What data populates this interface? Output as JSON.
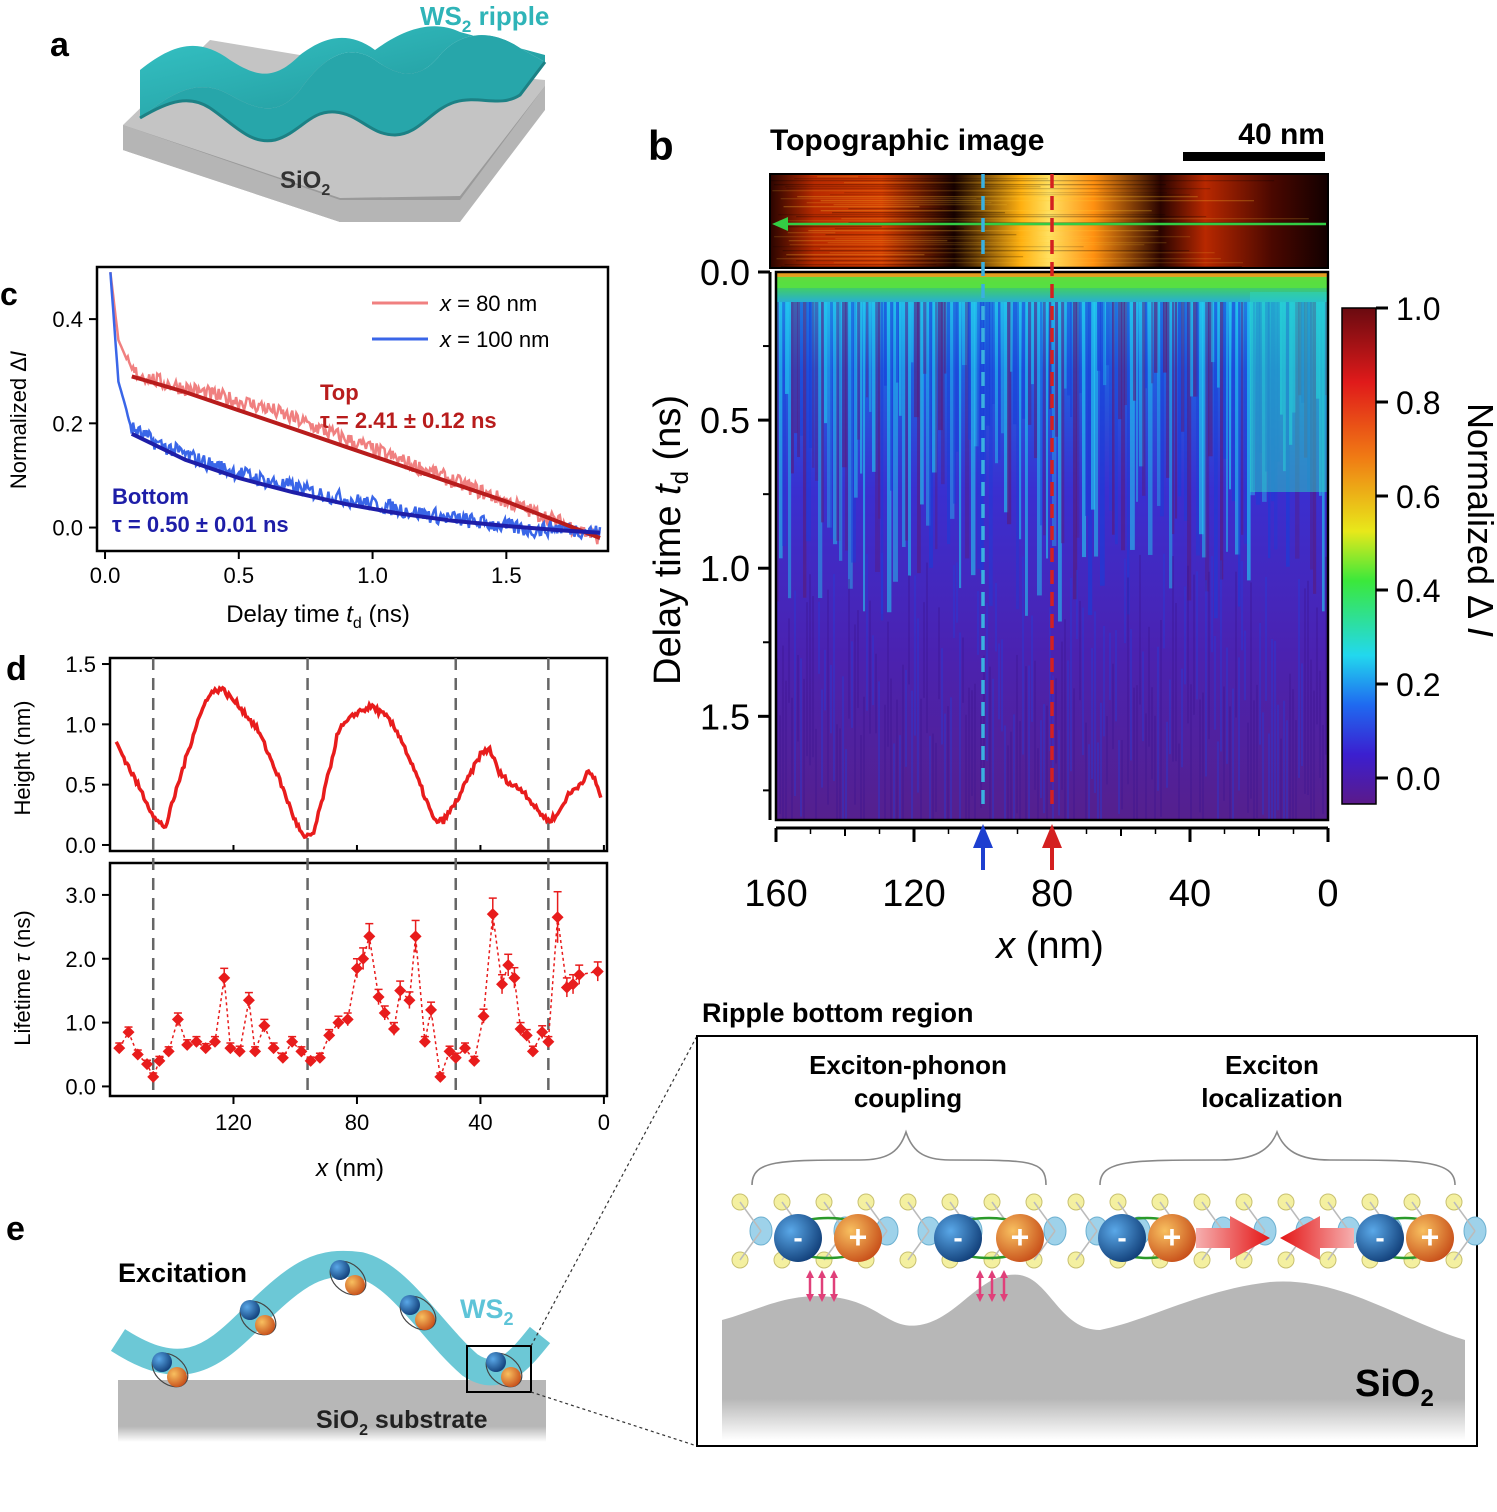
{
  "panel_letters": {
    "a": "a",
    "b": "b",
    "c": "c",
    "d": "d",
    "e": "e"
  },
  "colors": {
    "ripple": "#2fb4b8",
    "substrate": "#b7b7b7",
    "red_line": "#d42020",
    "blue_line": "#1d3fd0",
    "fit_red": "#b81c1c",
    "fit_blue": "#1e1ea8",
    "cyan_dash": "#3ab0e0",
    "green_arrow": "#33cc44",
    "pink_arrow": "#e0407a"
  },
  "panel_a": {
    "ripple_prefix": "WS",
    "ripple_sub": "2",
    "ripple_suffix": " ripple",
    "sub_prefix": "SiO",
    "sub_sub": "2"
  },
  "panel_b": {
    "topo_title": "Topographic image",
    "scalebar_label": "40 nm",
    "ylabel_prefix": "Delay time ",
    "ylabel_var": "t",
    "ylabel_sub": "d",
    "ylabel_suffix": " (ns)",
    "yticks": [
      "0.0",
      "0.5",
      "1.0",
      "1.5"
    ],
    "xticks": [
      "160",
      "120",
      "80",
      "40",
      "0"
    ],
    "xlabel_var": "x",
    "xlabel_suffix": " (nm)",
    "colorbar_ticks": [
      "1.0",
      "0.8",
      "0.6",
      "0.4",
      "0.2",
      "0.0"
    ],
    "colorbar_label_prefix": "Normalized Δ ",
    "colorbar_label_var": "I"
  },
  "panel_c": {
    "ylabel_prefix": "Normalized Δ",
    "ylabel_var": "I",
    "xlabel_prefix": "Delay time ",
    "xlabel_var": "t",
    "xlabel_sub": "d",
    "xlabel_suffix": " (ns)",
    "xticks": [
      "0.0",
      "0.5",
      "1.0",
      "1.5"
    ],
    "yticks": [
      "0.0",
      "0.2",
      "0.4"
    ],
    "legend": [
      {
        "var": "x",
        "text": " = 80 nm"
      },
      {
        "var": "x",
        "text": " = 100 nm"
      }
    ],
    "top_label": "Top",
    "top_tau": "τ = 2.41 ± 0.12 ns",
    "bottom_label": "Bottom",
    "bottom_tau": "τ = 0.50 ± 0.01 ns"
  },
  "panel_d": {
    "height_ylabel": "Height (nm)",
    "height_yticks": [
      "0.0",
      "0.5",
      "1.0",
      "1.5"
    ],
    "life_ylabel_prefix": "Lifetime ",
    "life_ylabel_var": "τ",
    "life_ylabel_suffix": " (ns)",
    "life_yticks": [
      "0.0",
      "1.0",
      "2.0",
      "3.0"
    ],
    "xticks": [
      "120",
      "80",
      "40",
      "0"
    ],
    "xlabel_var": "x",
    "xlabel_suffix": " (nm)"
  },
  "panel_e": {
    "excitation": "Excitation",
    "ws2_prefix": "WS",
    "ws2_sub": "2",
    "substrate_prefix": "SiO",
    "substrate_sub": "2",
    "substrate_suffix": " substrate",
    "region_title": "Ripple bottom region",
    "coupling_line1": "Exciton-phonon",
    "coupling_line2": "coupling",
    "localization_line1": "Exciton",
    "localization_line2": "localization",
    "sio2_prefix": "SiO",
    "sio2_sub": "2",
    "minus": "-",
    "plus": "+"
  },
  "chart_data": [
    {
      "type": "line",
      "title": "",
      "xlabel": "Delay time t_d (ns)",
      "ylabel": "Normalized ΔI",
      "xlim": [
        -0.03,
        1.88
      ],
      "ylim": [
        -0.045,
        0.5
      ],
      "series": [
        {
          "name": "x = 80 nm",
          "x": [
            0.02,
            0.05,
            0.1,
            0.2,
            0.4,
            0.6,
            0.8,
            1.0,
            1.2,
            1.4,
            1.6,
            1.7,
            1.85
          ],
          "values": [
            0.49,
            0.36,
            0.3,
            0.28,
            0.255,
            0.23,
            0.19,
            0.15,
            0.11,
            0.07,
            0.03,
            0.01,
            -0.02
          ]
        },
        {
          "name": "x = 100 nm",
          "x": [
            0.02,
            0.05,
            0.1,
            0.2,
            0.4,
            0.6,
            0.8,
            1.0,
            1.2,
            1.4,
            1.6,
            1.7,
            1.85
          ],
          "values": [
            0.49,
            0.28,
            0.19,
            0.16,
            0.12,
            0.09,
            0.065,
            0.045,
            0.025,
            0.01,
            -0.005,
            0.0,
            -0.01
          ]
        },
        {
          "name": "Top fit",
          "x": [
            0.1,
            0.3,
            0.5,
            0.7,
            0.9,
            1.1,
            1.3,
            1.5,
            1.7,
            1.85
          ],
          "values": [
            0.29,
            0.26,
            0.225,
            0.19,
            0.155,
            0.12,
            0.085,
            0.05,
            0.01,
            -0.02
          ]
        },
        {
          "name": "Bottom fit",
          "x": [
            0.1,
            0.3,
            0.5,
            0.7,
            0.9,
            1.1,
            1.3,
            1.5,
            1.7,
            1.85
          ],
          "values": [
            0.18,
            0.13,
            0.095,
            0.068,
            0.045,
            0.027,
            0.013,
            0.003,
            -0.005,
            -0.01
          ]
        }
      ]
    },
    {
      "type": "line",
      "title": "",
      "xlabel": "x (nm)",
      "ylabel": "Height (nm)",
      "xlim": [
        160,
        -1
      ],
      "ylim": [
        -0.05,
        1.55
      ],
      "series": [
        {
          "name": "Height",
          "x": [
            158,
            152,
            148,
            145,
            142,
            138,
            132,
            128,
            124,
            118,
            112,
            106,
            100,
            97,
            94,
            90,
            86,
            80,
            75,
            70,
            66,
            62,
            58,
            55,
            52,
            48,
            44,
            40,
            37,
            34,
            30,
            26,
            22,
            18,
            15,
            12,
            8,
            5,
            3,
            1
          ],
          "values": [
            0.85,
            0.55,
            0.35,
            0.2,
            0.15,
            0.5,
            1.0,
            1.25,
            1.3,
            1.15,
            0.95,
            0.6,
            0.2,
            0.05,
            0.1,
            0.5,
            0.95,
            1.1,
            1.15,
            1.05,
            0.9,
            0.65,
            0.4,
            0.2,
            0.2,
            0.35,
            0.55,
            0.75,
            0.8,
            0.6,
            0.5,
            0.45,
            0.3,
            0.2,
            0.25,
            0.4,
            0.5,
            0.6,
            0.55,
            0.4
          ]
        }
      ],
      "vlines": [
        146,
        96,
        48,
        18
      ]
    },
    {
      "type": "scatter",
      "title": "",
      "xlabel": "x (nm)",
      "ylabel": "Lifetime τ (ns)",
      "xlim": [
        160,
        -1
      ],
      "ylim": [
        -0.15,
        3.5
      ],
      "series": [
        {
          "name": "Lifetime",
          "x": [
            157,
            154,
            151,
            148,
            146,
            144,
            141,
            138,
            135,
            132,
            129,
            126,
            123,
            121,
            118,
            115,
            113,
            110,
            107,
            104,
            101,
            98,
            95,
            92,
            89,
            86,
            83,
            80,
            78,
            76,
            73,
            71,
            68,
            66,
            63,
            61,
            58,
            56,
            53,
            50,
            48,
            45,
            42,
            39,
            36,
            33,
            31,
            29,
            27,
            25,
            23,
            20,
            18,
            15,
            12,
            10,
            8,
            2
          ],
          "values": [
            0.6,
            0.85,
            0.5,
            0.35,
            0.15,
            0.4,
            0.55,
            1.05,
            0.65,
            0.7,
            0.6,
            0.7,
            1.7,
            0.6,
            0.55,
            1.35,
            0.55,
            0.95,
            0.6,
            0.45,
            0.7,
            0.55,
            0.4,
            0.45,
            0.8,
            1.0,
            1.05,
            1.85,
            2.0,
            2.35,
            1.4,
            1.15,
            0.9,
            1.5,
            1.35,
            2.35,
            0.7,
            1.2,
            0.15,
            0.55,
            0.45,
            0.6,
            0.4,
            1.1,
            2.7,
            1.6,
            1.9,
            1.7,
            0.9,
            0.8,
            0.55,
            0.85,
            0.7,
            2.65,
            1.55,
            1.6,
            1.75,
            1.8
          ],
          "errors": [
            0.08,
            0.08,
            0.07,
            0.06,
            0.06,
            0.07,
            0.07,
            0.1,
            0.08,
            0.08,
            0.07,
            0.08,
            0.15,
            0.08,
            0.08,
            0.12,
            0.07,
            0.1,
            0.08,
            0.07,
            0.08,
            0.07,
            0.06,
            0.07,
            0.09,
            0.1,
            0.1,
            0.15,
            0.17,
            0.2,
            0.12,
            0.11,
            0.1,
            0.15,
            0.13,
            0.25,
            0.08,
            0.12,
            0.06,
            0.08,
            0.07,
            0.08,
            0.07,
            0.11,
            0.25,
            0.15,
            0.17,
            0.16,
            0.1,
            0.09,
            0.08,
            0.1,
            0.08,
            0.4,
            0.15,
            0.15,
            0.15,
            0.15
          ]
        }
      ],
      "vlines": [
        146,
        96,
        48,
        18
      ]
    },
    {
      "type": "heatmap",
      "title": "",
      "xlabel": "x (nm)",
      "ylabel": "Delay time t_d (ns)",
      "xlim": [
        160,
        0
      ],
      "ylim": [
        0.0,
        1.85
      ],
      "colorbar_label": "Normalized Δ I",
      "colorbar_range": [
        0.0,
        1.0
      ],
      "markers": [
        {
          "x": 100,
          "color": "blue"
        },
        {
          "x": 80,
          "color": "red"
        }
      ]
    }
  ]
}
